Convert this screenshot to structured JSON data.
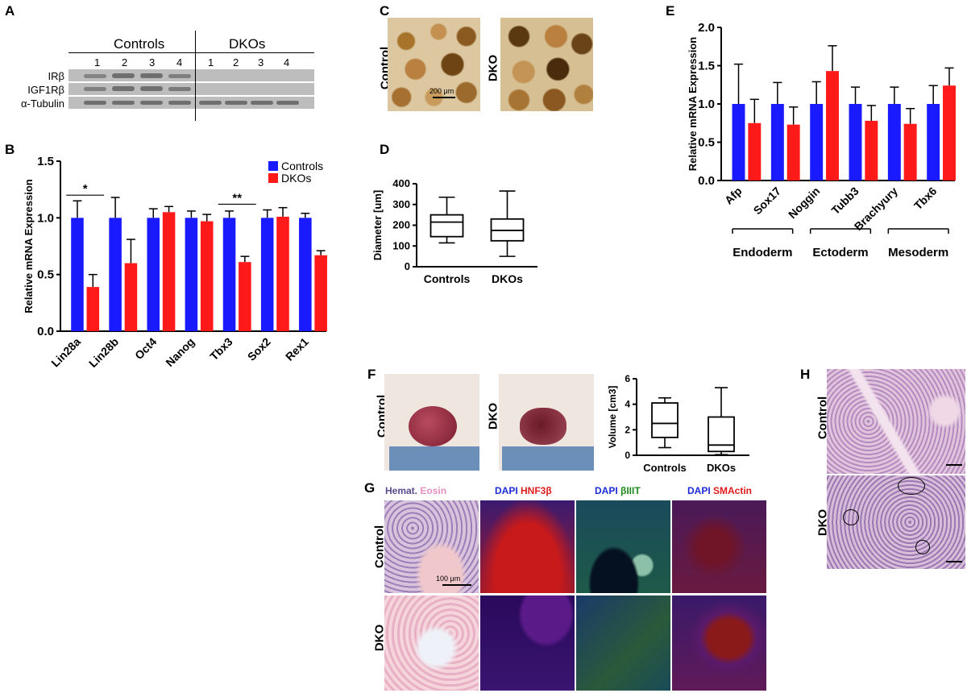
{
  "panels": {
    "a": "A",
    "b": "B",
    "c": "C",
    "d": "D",
    "e": "E",
    "f": "F",
    "g": "G",
    "h": "H"
  },
  "panelA": {
    "group_controls": "Controls",
    "group_dkos": "DKOs",
    "lanes": [
      "1",
      "2",
      "3",
      "4",
      "1",
      "2",
      "3",
      "4"
    ],
    "rows": [
      "IRβ",
      "IGF1Rβ",
      "α-Tubulin"
    ]
  },
  "panelC": {
    "row1": "Control",
    "row2": "DKO",
    "scale": "200 μm"
  },
  "panelF": {
    "row1": "Control",
    "row2": "DKO"
  },
  "panelG": {
    "row1": "Control",
    "row2": "DKO",
    "scale": "100 μm",
    "stains": [
      {
        "a": "Hemat.",
        "b": "Eosin",
        "a_color": "#5a4a8c",
        "b_color": "#e58fc1"
      },
      {
        "a": "DAPI",
        "b": "HNF3β",
        "a_color": "#1a2bd6",
        "b_color": "#e01b1b"
      },
      {
        "a": "DAPI",
        "b": "βIIIT",
        "a_color": "#1a2bd6",
        "b_color": "#1f8a1f"
      },
      {
        "a": "DAPI",
        "b": "SMActin",
        "a_color": "#1a2bd6",
        "b_color": "#e01b1b"
      }
    ]
  },
  "panelH": {
    "row1": "Control",
    "row2": "DKO"
  },
  "colors": {
    "controls": "#1a1aff",
    "dkos": "#ff1a1a"
  },
  "chart_data": [
    {
      "id": "B",
      "type": "bar",
      "ylabel": "Relative mRNA Expression",
      "ylim": [
        0,
        1.5
      ],
      "yticks": [
        "0.0",
        "0.5",
        "1.0",
        "1.5"
      ],
      "categories": [
        "Lin28a",
        "Lin28b",
        "Oct4",
        "Nanog",
        "Tbx3",
        "Sox2",
        "Rex1"
      ],
      "series": [
        {
          "name": "Controls",
          "values": [
            1.0,
            1.0,
            1.0,
            1.0,
            1.0,
            1.0,
            1.0
          ],
          "err": [
            0.15,
            0.18,
            0.08,
            0.06,
            0.06,
            0.07,
            0.04
          ]
        },
        {
          "name": "DKOs",
          "values": [
            0.39,
            0.6,
            1.05,
            0.97,
            0.61,
            1.01,
            0.67
          ],
          "err": [
            0.11,
            0.21,
            0.05,
            0.06,
            0.05,
            0.08,
            0.04
          ]
        }
      ],
      "legend": "top-right",
      "annotations": [
        "*",
        "**"
      ]
    },
    {
      "id": "D",
      "type": "box",
      "ylabel": "Diameter [um]",
      "ylim": [
        0,
        400
      ],
      "yticks": [
        "0",
        "100",
        "200",
        "300",
        "400"
      ],
      "categories": [
        "Controls",
        "DKOs"
      ],
      "boxes": [
        {
          "min": 115,
          "q1": 145,
          "median": 215,
          "q3": 250,
          "max": 335
        },
        {
          "min": 50,
          "q1": 125,
          "median": 175,
          "q3": 230,
          "max": 365
        }
      ]
    },
    {
      "id": "E",
      "type": "bar",
      "ylabel": "Relative mRNA Expression",
      "ylim": [
        0,
        2.0
      ],
      "yticks": [
        "0.0",
        "0.5",
        "1.0",
        "1.5",
        "2.0"
      ],
      "categories": [
        "Afp",
        "Sox17",
        "Noggin",
        "Tubb3",
        "Brachyury",
        "Tbx6"
      ],
      "series": [
        {
          "name": "Controls",
          "values": [
            1.0,
            1.0,
            1.0,
            1.0,
            1.0,
            1.0
          ],
          "err": [
            0.52,
            0.28,
            0.29,
            0.22,
            0.22,
            0.24
          ]
        },
        {
          "name": "DKOs",
          "values": [
            0.75,
            0.73,
            1.43,
            0.78,
            0.74,
            1.24
          ],
          "err": [
            0.31,
            0.23,
            0.33,
            0.2,
            0.2,
            0.23
          ]
        }
      ],
      "groups": [
        "Endoderm",
        "Ectoderm",
        "Mesoderm"
      ]
    },
    {
      "id": "F",
      "type": "box",
      "ylabel": "Volume [cm3]",
      "ylim": [
        0,
        6
      ],
      "yticks": [
        "0",
        "2",
        "4",
        "6"
      ],
      "categories": [
        "Controls",
        "DKOs"
      ],
      "boxes": [
        {
          "min": 0.6,
          "q1": 1.4,
          "median": 2.5,
          "q3": 4.1,
          "max": 4.5
        },
        {
          "min": 0.05,
          "q1": 0.3,
          "median": 0.8,
          "q3": 3.0,
          "max": 5.3
        }
      ]
    }
  ]
}
